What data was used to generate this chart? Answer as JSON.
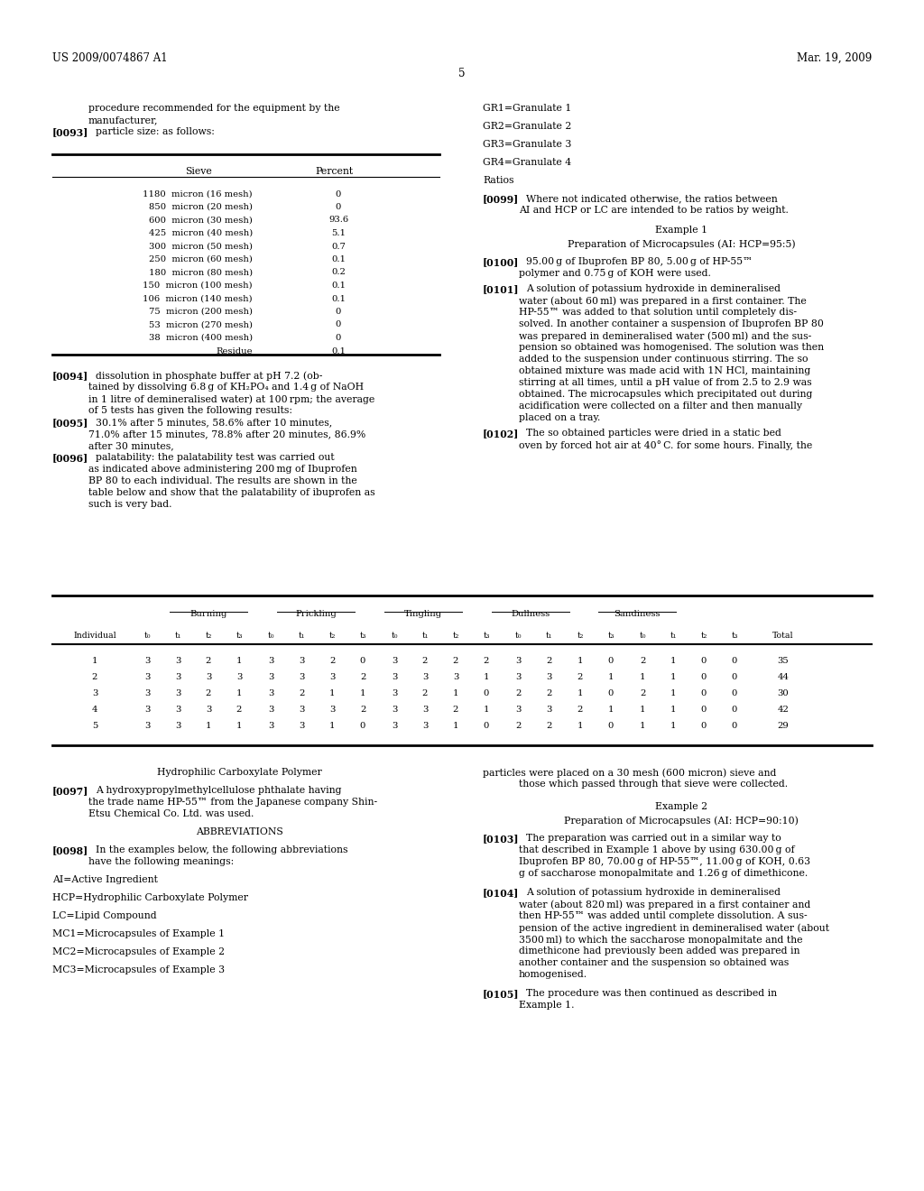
{
  "background_color": "#ffffff",
  "header_left": "US 2009/0074867 A1",
  "header_right": "Mar. 19, 2009",
  "page_number": "5",
  "font_size": 7.8,
  "font_size_small": 7.2,
  "font_size_header": 8.5,
  "sieve_table": {
    "rows": [
      [
        "1180  micron (16 mesh)",
        "0"
      ],
      [
        "850  micron (20 mesh)",
        "0"
      ],
      [
        "600  micron (30 mesh)",
        "93.6"
      ],
      [
        "425  micron (40 mesh)",
        "5.1"
      ],
      [
        "300  micron (50 mesh)",
        "0.7"
      ],
      [
        "250  micron (60 mesh)",
        "0.1"
      ],
      [
        "180  micron (80 mesh)",
        "0.2"
      ],
      [
        "150  micron (100 mesh)",
        "0.1"
      ],
      [
        "106  micron (140 mesh)",
        "0.1"
      ],
      [
        "75  micron (200 mesh)",
        "0"
      ],
      [
        "53  micron (270 mesh)",
        "0"
      ],
      [
        "38  micron (400 mesh)",
        "0"
      ],
      [
        "Residue",
        "0.1"
      ]
    ]
  },
  "palatability_table": {
    "group_headers": [
      "Burning",
      "Prickling",
      "Tingling",
      "Dullness",
      "Sandiness"
    ],
    "col_headers": [
      "Individual",
      "t₀",
      "t₁",
      "t₂",
      "t₃",
      "t₀",
      "t₁",
      "t₂",
      "t₃",
      "t₀",
      "t₁",
      "t₂",
      "t₃",
      "t₀",
      "t₁",
      "t₂",
      "t₃",
      "t₀",
      "t₁",
      "t₂",
      "t₃",
      "Total"
    ],
    "rows": [
      [
        "1",
        "3",
        "3",
        "2",
        "1",
        "3",
        "3",
        "2",
        "0",
        "3",
        "2",
        "2",
        "2",
        "3",
        "2",
        "1",
        "0",
        "2",
        "1",
        "0",
        "0",
        "35"
      ],
      [
        "2",
        "3",
        "3",
        "3",
        "3",
        "3",
        "3",
        "3",
        "2",
        "3",
        "3",
        "3",
        "1",
        "3",
        "3",
        "2",
        "1",
        "1",
        "1",
        "0",
        "0",
        "44"
      ],
      [
        "3",
        "3",
        "3",
        "2",
        "1",
        "3",
        "2",
        "1",
        "1",
        "3",
        "2",
        "1",
        "0",
        "2",
        "2",
        "1",
        "0",
        "2",
        "1",
        "0",
        "0",
        "30"
      ],
      [
        "4",
        "3",
        "3",
        "3",
        "2",
        "3",
        "3",
        "3",
        "2",
        "3",
        "3",
        "2",
        "1",
        "3",
        "3",
        "2",
        "1",
        "1",
        "1",
        "0",
        "0",
        "42"
      ],
      [
        "5",
        "3",
        "3",
        "1",
        "1",
        "3",
        "3",
        "1",
        "0",
        "3",
        "3",
        "1",
        "0",
        "2",
        "2",
        "1",
        "0",
        "1",
        "1",
        "0",
        "0",
        "29"
      ]
    ]
  }
}
